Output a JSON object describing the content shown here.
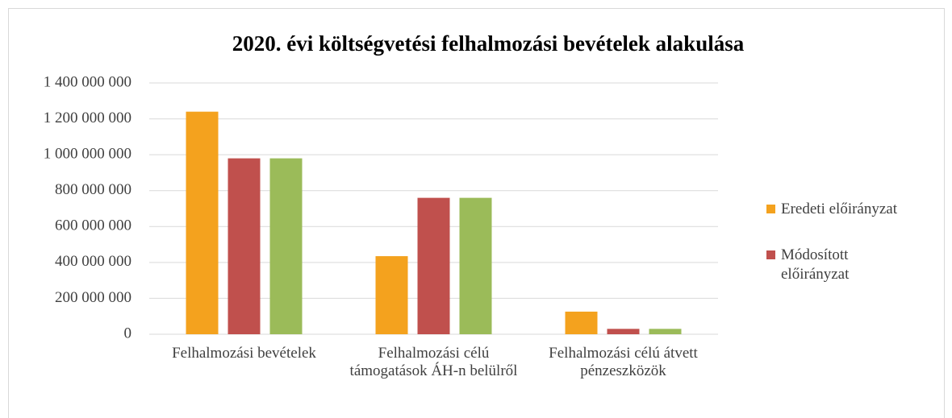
{
  "chart_data": {
    "type": "bar",
    "title": "2020. évi költségvetési felhalmozási bevételek alakulása",
    "categories": [
      "Felhalmozási bevételek",
      "Felhalmozási célú támogatások ÁH-n belülről",
      "Felhalmozási célú átvett pénzeszközök"
    ],
    "series": [
      {
        "name": "Eredeti előirányzat",
        "color": "#f4a21e",
        "values": [
          1240000000,
          435000000,
          126000000
        ]
      },
      {
        "name": "Módosított előirányzat",
        "color": "#c0504d",
        "values": [
          980000000,
          760000000,
          30000000
        ]
      },
      {
        "color": "#9bbb59",
        "values": [
          980000000,
          760000000,
          30000000
        ]
      }
    ],
    "ylim": [
      0,
      1400000000
    ],
    "yticks": [
      0,
      {
        "value": 200000000,
        "label": "200 000 000"
      },
      {
        "value": 400000000,
        "label": "400 000 000"
      },
      {
        "value": 600000000,
        "label": "600 000 000"
      },
      {
        "value": 800000000,
        "label": "800 000 000"
      },
      {
        "value": 1000000000,
        "label": "1 000 000 000"
      },
      {
        "value": 1200000000,
        "label": "1 200 000 000"
      },
      {
        "value": 1400000000,
        "label": "1 400 000 000"
      }
    ],
    "grid": true
  }
}
